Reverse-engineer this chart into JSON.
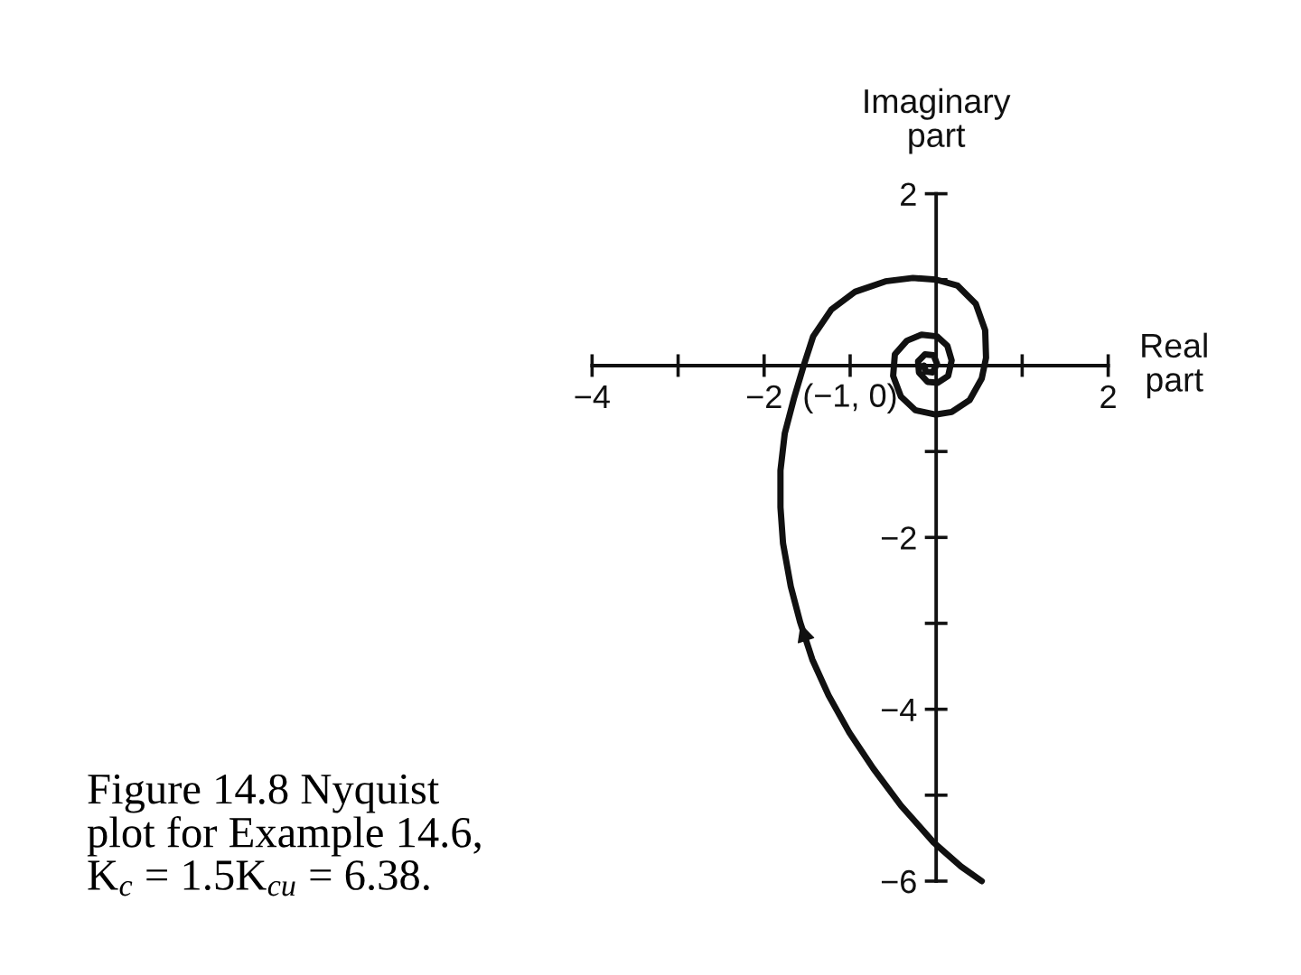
{
  "chart_data": {
    "type": "line",
    "xlabel": "Real\npart",
    "ylabel": "Imaginary\npart",
    "annotations": [
      "(−1, 0)",
      "Figure 14.8 Nyquist\nplot for Example 14.6,\nK$_{c}$ = 1.5K$_{cu}$ = 6.38."
    ],
    "series": [
      {
        "color": "#111111",
        "x": [
          0.53,
          0.29,
          -0.03,
          -0.41,
          -0.73,
          -1.01,
          -1.25,
          -1.44,
          -1.58,
          -1.69,
          -1.78,
          -1.81,
          -1.81,
          -1.76,
          -1.65,
          -1.54,
          -1.43,
          -1.22,
          -0.94,
          -0.59,
          -0.27,
          0.0,
          0.25,
          0.46,
          0.57,
          0.58,
          0.53,
          0.39,
          0.18,
          -0.01,
          -0.24,
          -0.41,
          -0.5,
          -0.48,
          -0.34,
          -0.17,
          0.01,
          0.13,
          0.18,
          0.14,
          0.02,
          -0.1,
          -0.2,
          -0.21,
          -0.13,
          -0.03,
          0.01,
          -0.04,
          -0.12,
          -0.14
        ],
        "values": [
          -6.0,
          -5.83,
          -5.55,
          -5.12,
          -4.69,
          -4.27,
          -3.84,
          -3.42,
          -2.99,
          -2.57,
          -2.07,
          -1.65,
          -1.22,
          -0.79,
          -0.37,
          0.0,
          0.34,
          0.65,
          0.86,
          0.98,
          1.02,
          1.0,
          0.93,
          0.72,
          0.41,
          0.09,
          -0.15,
          -0.4,
          -0.54,
          -0.57,
          -0.52,
          -0.36,
          -0.12,
          0.13,
          0.29,
          0.36,
          0.34,
          0.23,
          0.06,
          -0.12,
          -0.2,
          -0.19,
          -0.08,
          0.05,
          0.13,
          0.12,
          0.02,
          -0.08,
          -0.07,
          0.0
        ]
      }
    ],
    "xlim": [
      -4,
      2
    ],
    "ylim": [
      -6,
      2
    ],
    "xticks": [
      {
        "value": -4,
        "label": "−4"
      },
      {
        "value": -3,
        "label": null
      },
      {
        "value": -2,
        "label": "−2"
      },
      {
        "value": -1,
        "label": null
      },
      {
        "value": 1,
        "label": null
      },
      2
    ],
    "yticks": [
      2,
      {
        "value": 1,
        "label": null
      },
      {
        "value": -1,
        "label": null
      },
      {
        "value": -2,
        "label": "−2"
      },
      {
        "value": -3,
        "label": null
      },
      {
        "value": -4,
        "label": "−4"
      },
      {
        "value": -5,
        "label": null
      },
      {
        "value": -6,
        "label": "−6"
      }
    ]
  }
}
